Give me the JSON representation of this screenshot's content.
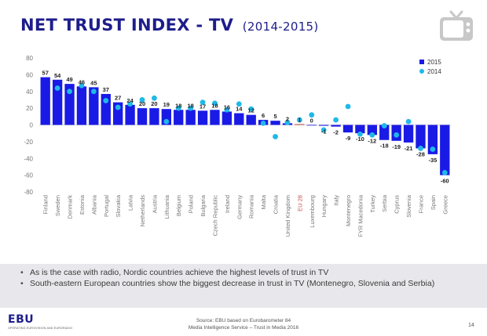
{
  "header": {
    "title": "NET TRUST INDEX - TV",
    "subtitle": "(2014-2015)"
  },
  "chart_data": {
    "type": "bar",
    "title": "NET TRUST INDEX - TV (2014-2015)",
    "ylim": [
      -80,
      80
    ],
    "yticks": [
      -80,
      -60,
      -40,
      -20,
      0,
      20,
      40,
      60,
      80
    ],
    "grid": false,
    "legend_position": "top-right",
    "categories": [
      "Finland",
      "Sweden",
      "Denmark",
      "Estonia",
      "Albania",
      "Portugal",
      "Slovakia",
      "Latvia",
      "Netherlands",
      "Austria",
      "Lithuania",
      "Belgium",
      "Poland",
      "Bulgaria",
      "Czech Republic",
      "Ireland",
      "Germany",
      "Romania",
      "Malta",
      "Croatia",
      "United Kingdom",
      "EU 28",
      "Luxembourg",
      "Hungary",
      "Italy",
      "Montenegro",
      "FYR Macedonia",
      "Turkey",
      "Serbia",
      "Cyprus",
      "Slovenia",
      "France",
      "Spain",
      "Greece"
    ],
    "highlight_category": "EU 28",
    "series": [
      {
        "name": "2015",
        "type": "bar",
        "color": "#1a1ae6",
        "highlight_color": "#c0504d",
        "values": [
          57,
          54,
          49,
          46,
          45,
          37,
          27,
          24,
          20,
          20,
          19,
          18,
          18,
          17,
          18,
          16,
          14,
          12,
          6,
          5,
          2,
          1,
          0,
          -1,
          -2,
          -9,
          -10,
          -12,
          -18,
          -19,
          -21,
          -28,
          -35,
          -60
        ]
      },
      {
        "name": "2014",
        "type": "scatter",
        "color": "#20b8e8",
        "values": [
          null,
          44,
          40,
          47,
          40,
          29,
          21,
          25,
          30,
          32,
          4,
          20,
          20,
          27,
          26,
          18,
          25,
          19,
          2,
          -14,
          3,
          6,
          12,
          -6,
          6,
          22,
          -11,
          -12,
          -1,
          -12,
          4,
          -28,
          -29,
          -57
        ]
      }
    ]
  },
  "notes": {
    "items": [
      "As is the case with radio, Nordic countries achieve the highest levels of trust in TV",
      "South-eastern European countries show the biggest decrease in trust in TV (Montenegro, Slovenia and Serbia)"
    ]
  },
  "footer": {
    "logo_text": "EBU",
    "logo_subtext": "OPERATING EUROVISION AND EURORADIO",
    "source_line1": "Source: EBU based on Eurobarometer 84",
    "source_line2": "Media Intelligence Service – Trust in Media 2016",
    "page_number": "14"
  },
  "icons": {
    "tv": "tv-icon"
  },
  "colors": {
    "title": "#1d1d8c",
    "bar_2015": "#1a1ae6",
    "dot_2014": "#20b8e8",
    "eu_highlight": "#c0504d",
    "notes_background": "#e8e8ec"
  }
}
